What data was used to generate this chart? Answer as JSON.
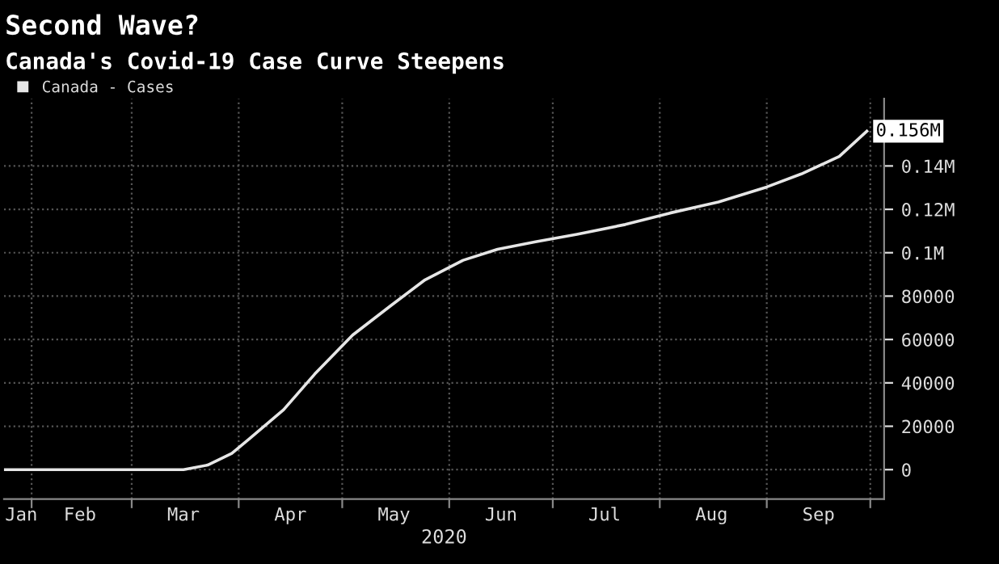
{
  "chart_data": {
    "type": "line",
    "title": "Second Wave?",
    "subtitle": "Canada's Covid-19 Case Curve Steepens",
    "xlabel": "2020",
    "x": [
      "2020-01-24",
      "2020-03-16",
      "2020-03-23",
      "2020-03-30",
      "2020-04-04",
      "2020-04-14",
      "2020-04-23",
      "2020-05-04",
      "2020-05-15",
      "2020-05-25",
      "2020-06-05",
      "2020-06-15",
      "2020-06-26",
      "2020-07-08",
      "2020-07-22",
      "2020-08-04",
      "2020-08-18",
      "2020-09-01",
      "2020-09-11",
      "2020-09-22",
      "2020-09-30"
    ],
    "series": [
      {
        "name": "Canada - Cases",
        "color": "#e6e6e6",
        "values": [
          0,
          0,
          2100,
          7500,
          14100,
          27600,
          44000,
          62000,
          75500,
          87500,
          96500,
          101600,
          105000,
          108500,
          113000,
          118300,
          123400,
          130300,
          136300,
          144400,
          156000
        ]
      }
    ],
    "xlim": [
      "2020-01-24",
      "2020-10-05"
    ],
    "xticks": [
      {
        "value": "2020-01-29",
        "label": "Jan"
      },
      {
        "value": "2020-02-01",
        "label": null
      },
      {
        "value": "2020-02-15",
        "label": "Feb"
      },
      {
        "value": "2020-03-01",
        "label": null
      },
      {
        "value": "2020-03-16",
        "label": "Mar"
      },
      {
        "value": "2020-04-01",
        "label": null
      },
      {
        "value": "2020-04-16",
        "label": "Apr"
      },
      {
        "value": "2020-05-01",
        "label": null
      },
      {
        "value": "2020-05-16",
        "label": "May"
      },
      {
        "value": "2020-06-01",
        "label": null
      },
      {
        "value": "2020-06-16",
        "label": "Jun"
      },
      {
        "value": "2020-07-01",
        "label": null
      },
      {
        "value": "2020-07-16",
        "label": "Jul"
      },
      {
        "value": "2020-08-01",
        "label": null
      },
      {
        "value": "2020-08-16",
        "label": "Aug"
      },
      {
        "value": "2020-09-01",
        "label": null
      },
      {
        "value": "2020-09-16",
        "label": "Sep"
      },
      {
        "value": "2020-10-01",
        "label": null
      }
    ],
    "annotations": [
      {
        "text": "0.156M",
        "x": "2020-09-30",
        "y": 156000
      }
    ],
    "ylim": [
      -13600,
      171000
    ],
    "yticks": [
      0,
      20000,
      40000,
      60000,
      80000,
      {
        "value": 100000,
        "label": "0.1M"
      },
      {
        "value": 120000,
        "label": "0.12M"
      },
      {
        "value": 140000,
        "label": "0.14M"
      }
    ],
    "grid": true,
    "legend": "top left",
    "line_style": "solid",
    "marker": "none"
  }
}
